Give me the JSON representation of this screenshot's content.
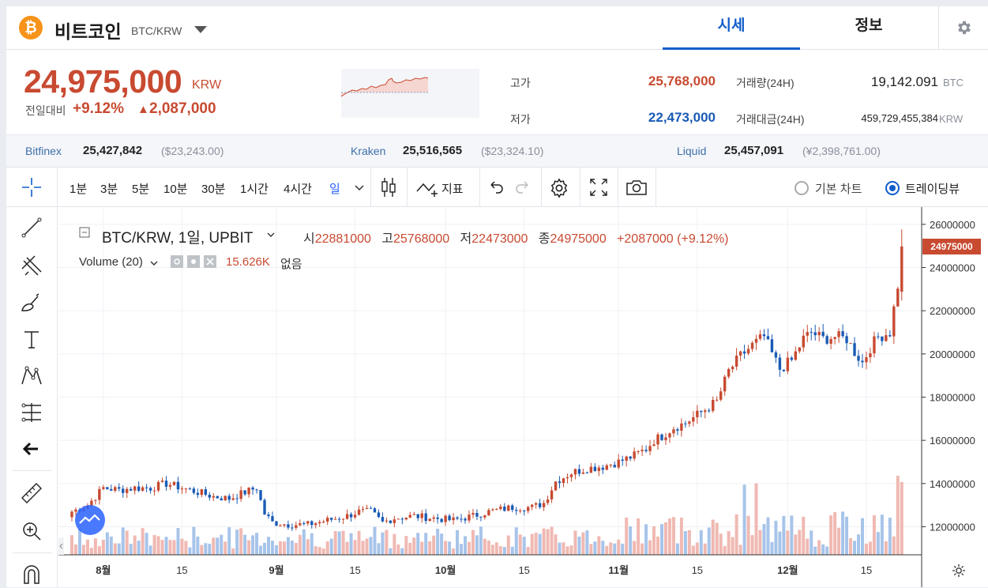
{
  "header": {
    "coin_logo": "₿",
    "coin_name": "비트코인",
    "pair": "BTC/KRW",
    "tabs": [
      {
        "label": "시세",
        "active": true
      },
      {
        "label": "정보",
        "active": false
      }
    ],
    "settings_icon": "gear-icon"
  },
  "summary": {
    "price": "24,975,000",
    "unit": "KRW",
    "change_label": "전일대비",
    "change_pct": "+9.12%",
    "change_tri": "▲",
    "change_abs": "2,087,000",
    "high_label": "고가",
    "high": "25,768,000",
    "low_label": "저가",
    "low": "22,473,000",
    "volume_label": "거래량(24H)",
    "volume": "19,142.091",
    "volume_unit": "BTC",
    "value_label": "거래대금(24H)",
    "value": "459,729,455,384",
    "value_unit": "KRW",
    "colors": {
      "up": "#c84a31",
      "down": "#1a5bb5"
    }
  },
  "exchanges": [
    {
      "name": "Bitfinex",
      "price": "25,427,842",
      "usd": "($23,243.00)"
    },
    {
      "name": "Kraken",
      "price": "25,516,565",
      "usd": "($23,324.10)"
    },
    {
      "name": "Liquid",
      "price": "25,457,091",
      "usd": "(¥2,398,761.00)"
    }
  ],
  "toolbar": {
    "intervals": [
      "1분",
      "3분",
      "5분",
      "10분",
      "30분",
      "1시간",
      "4시간",
      "일"
    ],
    "active_interval": "일",
    "indicator_label": "지표",
    "chart_modes": [
      {
        "label": "기본 차트",
        "selected": false
      },
      {
        "label": "트레이딩뷰",
        "selected": true
      }
    ]
  },
  "chart": {
    "title": "BTC/KRW, 1일, UPBIT",
    "ohlc": {
      "o_label": "시",
      "o": "22881000",
      "h_label": "고",
      "h": "25768000",
      "l_label": "저",
      "l": "22473000",
      "c_label": "종",
      "c": "24975000",
      "chg": "+2087000 (+9.12%)"
    },
    "volume_legend": {
      "label": "Volume (20)",
      "value": "15.626K",
      "none_label": "없음"
    },
    "last_price_badge": "24975000",
    "y_ticks": [
      "26000000",
      "24000000",
      "22000000",
      "20000000",
      "18000000",
      "16000000",
      "14000000",
      "12000000"
    ],
    "x_ticks": [
      "8월",
      "15",
      "9월",
      "15",
      "10월",
      "15",
      "11월",
      "15",
      "12월",
      "15"
    ]
  },
  "chart_data": {
    "type": "candlestick",
    "title": "BTC/KRW, 1일, UPBIT",
    "ylabel": "",
    "ylim": [
      10700000,
      26800000
    ],
    "x_ticks": [
      "8월",
      "15",
      "9월",
      "15",
      "10월",
      "15",
      "11월",
      "15",
      "12월",
      "15"
    ],
    "series": [
      {
        "name": "",
        "anchors_close": [
          [
            0,
            12700000
          ],
          [
            4,
            13000000
          ],
          [
            8,
            13800000
          ],
          [
            12,
            13700000
          ],
          [
            16,
            13800000
          ],
          [
            20,
            13800000
          ],
          [
            24,
            14000000
          ],
          [
            28,
            13800000
          ],
          [
            32,
            13600000
          ],
          [
            36,
            13400000
          ],
          [
            40,
            13300000
          ],
          [
            44,
            13600000
          ],
          [
            47,
            13800000
          ],
          [
            49,
            12600000
          ],
          [
            51,
            12200000
          ],
          [
            55,
            12100000
          ],
          [
            60,
            12100000
          ],
          [
            65,
            12300000
          ],
          [
            70,
            12500000
          ],
          [
            73,
            12700000
          ],
          [
            76,
            12700000
          ],
          [
            79,
            12200000
          ],
          [
            82,
            12400000
          ],
          [
            87,
            12500000
          ],
          [
            92,
            12400000
          ],
          [
            97,
            12300000
          ],
          [
            102,
            12500000
          ],
          [
            106,
            12700000
          ],
          [
            112,
            12900000
          ],
          [
            117,
            12900000
          ],
          [
            120,
            13100000
          ],
          [
            123,
            14100000
          ],
          [
            127,
            14500000
          ],
          [
            131,
            14700000
          ],
          [
            135,
            14800000
          ],
          [
            139,
            15000000
          ],
          [
            143,
            15300000
          ],
          [
            146,
            15600000
          ],
          [
            148,
            16000000
          ],
          [
            150,
            16200000
          ],
          [
            153,
            16600000
          ],
          [
            156,
            16800000
          ],
          [
            160,
            17300000
          ],
          [
            164,
            17800000
          ],
          [
            167,
            19200000
          ],
          [
            170,
            19900000
          ],
          [
            173,
            20400000
          ],
          [
            176,
            20800000
          ],
          [
            178,
            20000000
          ],
          [
            180,
            19300000
          ],
          [
            183,
            19700000
          ],
          [
            186,
            20700000
          ],
          [
            188,
            21000000
          ],
          [
            191,
            20700000
          ],
          [
            194,
            20800000
          ],
          [
            197,
            20700000
          ],
          [
            199,
            20100000
          ],
          [
            201,
            19600000
          ],
          [
            203,
            20300000
          ],
          [
            205,
            20800000
          ],
          [
            208,
            21000000
          ],
          [
            210,
            23200000
          ],
          [
            211,
            24975000
          ]
        ],
        "volume_k": [
          14.0,
          12.5,
          10.2,
          6.0,
          9.1,
          15.6
        ]
      }
    ],
    "last_open": 22881000,
    "last_high": 25768000,
    "last_low": 22473000,
    "last_close": 24975000
  }
}
